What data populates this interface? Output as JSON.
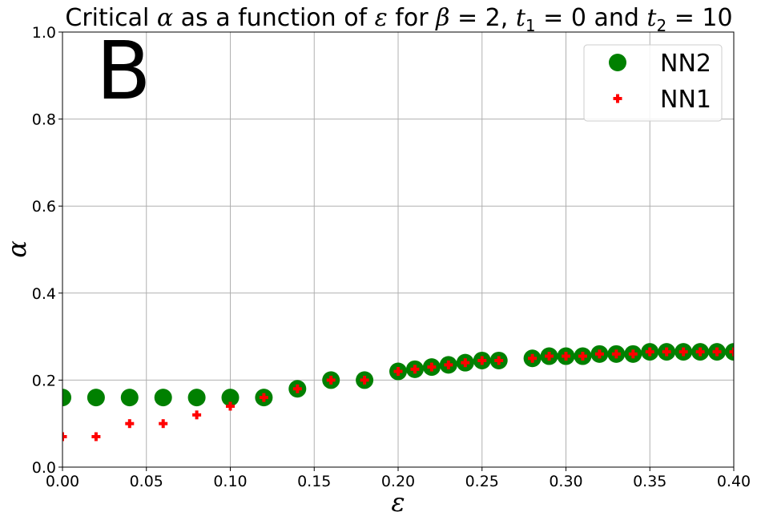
{
  "chart_data": {
    "type": "scatter",
    "title_parts": {
      "p1": "Critical ",
      "alpha": "α",
      "p2": " as a function of ",
      "eps": "ε",
      "p3": " for ",
      "beta": "β",
      "p4": " = 2, ",
      "t": "t",
      "sub1": "1",
      "p5": " = 0 and ",
      "sub2": "2",
      "p6": " = 10"
    },
    "panel_label": "B",
    "xlabel": "ε",
    "ylabel": "α",
    "xlim": [
      0.0,
      0.4
    ],
    "ylim": [
      0.0,
      1.0
    ],
    "x_ticks": [
      "0.00",
      "0.05",
      "0.10",
      "0.15",
      "0.20",
      "0.25",
      "0.30",
      "0.35",
      "0.40"
    ],
    "y_ticks": [
      "0.0",
      "0.2",
      "0.4",
      "0.6",
      "0.8",
      "1.0"
    ],
    "grid": true,
    "legend_position": "top-right",
    "series": [
      {
        "name": "NN2",
        "marker": "circle",
        "color": "#008000",
        "points": [
          [
            0.0,
            0.16
          ],
          [
            0.02,
            0.16
          ],
          [
            0.04,
            0.16
          ],
          [
            0.06,
            0.16
          ],
          [
            0.08,
            0.16
          ],
          [
            0.1,
            0.16
          ],
          [
            0.12,
            0.16
          ],
          [
            0.14,
            0.18
          ],
          [
            0.16,
            0.2
          ],
          [
            0.18,
            0.2
          ],
          [
            0.2,
            0.22
          ],
          [
            0.21,
            0.225
          ],
          [
            0.22,
            0.23
          ],
          [
            0.23,
            0.235
          ],
          [
            0.24,
            0.24
          ],
          [
            0.25,
            0.245
          ],
          [
            0.26,
            0.245
          ],
          [
            0.28,
            0.25
          ],
          [
            0.29,
            0.255
          ],
          [
            0.3,
            0.255
          ],
          [
            0.31,
            0.255
          ],
          [
            0.32,
            0.26
          ],
          [
            0.33,
            0.26
          ],
          [
            0.34,
            0.26
          ],
          [
            0.35,
            0.265
          ],
          [
            0.36,
            0.265
          ],
          [
            0.37,
            0.265
          ],
          [
            0.38,
            0.265
          ],
          [
            0.39,
            0.265
          ],
          [
            0.4,
            0.265
          ]
        ]
      },
      {
        "name": "NN1",
        "marker": "plus",
        "color": "#ff0000",
        "points": [
          [
            0.0,
            0.07
          ],
          [
            0.02,
            0.07
          ],
          [
            0.04,
            0.1
          ],
          [
            0.06,
            0.1
          ],
          [
            0.08,
            0.12
          ],
          [
            0.1,
            0.14
          ],
          [
            0.12,
            0.16
          ],
          [
            0.14,
            0.18
          ],
          [
            0.16,
            0.2
          ],
          [
            0.18,
            0.2
          ],
          [
            0.2,
            0.22
          ],
          [
            0.21,
            0.225
          ],
          [
            0.22,
            0.23
          ],
          [
            0.23,
            0.235
          ],
          [
            0.24,
            0.24
          ],
          [
            0.25,
            0.245
          ],
          [
            0.26,
            0.245
          ],
          [
            0.28,
            0.25
          ],
          [
            0.29,
            0.255
          ],
          [
            0.3,
            0.255
          ],
          [
            0.31,
            0.255
          ],
          [
            0.32,
            0.26
          ],
          [
            0.33,
            0.26
          ],
          [
            0.34,
            0.26
          ],
          [
            0.35,
            0.265
          ],
          [
            0.36,
            0.265
          ],
          [
            0.37,
            0.265
          ],
          [
            0.38,
            0.265
          ],
          [
            0.39,
            0.265
          ],
          [
            0.4,
            0.265
          ]
        ]
      }
    ]
  }
}
